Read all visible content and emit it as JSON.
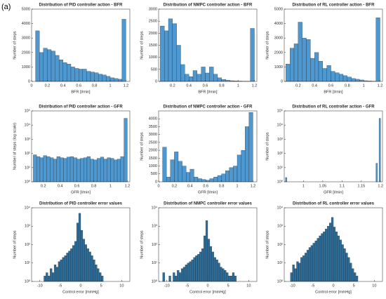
{
  "panel_label": "(a)",
  "chart_data": [
    {
      "type": "histogram",
      "title": "Distribution of PID controller action - BFR",
      "xlabel": "BFR [l/min]",
      "ylabel": "Number of steps",
      "log": false,
      "color": "#4e97cf",
      "bins": [
        0.05,
        0.1,
        0.15,
        0.2,
        0.25,
        0.3,
        0.35,
        0.4,
        0.45,
        0.5,
        0.55,
        0.6,
        0.65,
        0.7,
        0.75,
        0.8,
        0.85,
        0.9,
        0.95,
        1,
        1.05,
        1.1,
        1.15,
        1.2
      ],
      "counts": [
        3500,
        2000,
        2300,
        2200,
        2100,
        1800,
        1500,
        1300,
        1200,
        1000,
        900,
        850,
        850,
        700,
        650,
        600,
        500,
        450,
        350,
        250,
        200,
        150,
        4300
      ],
      "xlim": [
        0,
        1.25
      ],
      "xticks": [
        0,
        0.2,
        0.4,
        0.6,
        0.8,
        1,
        1.2
      ],
      "ylim": [
        0,
        5000
      ],
      "yticks": [
        0,
        1000,
        2000,
        3000,
        4000,
        5000
      ]
    },
    {
      "type": "histogram",
      "title": "Distribution of NMPC controller action - BFR",
      "xlabel": "BFR [l/min]",
      "ylabel": "Number of steps",
      "log": false,
      "color": "#4e97cf",
      "bins": [
        0.05,
        0.1,
        0.15,
        0.2,
        0.25,
        0.3,
        0.35,
        0.4,
        0.45,
        0.5,
        0.55,
        0.6,
        0.65,
        0.7,
        0.75,
        0.8,
        0.85,
        0.9,
        0.95,
        1,
        1.05,
        1.1,
        1.15,
        1.2
      ],
      "counts": [
        2300,
        2100,
        2600,
        2400,
        1500,
        700,
        300,
        200,
        450,
        300,
        600,
        350,
        600,
        300,
        150,
        80,
        50,
        30,
        20,
        15,
        10,
        10,
        2200
      ],
      "xlim": [
        0.03,
        1.23
      ],
      "xticks": [
        0.2,
        0.4,
        0.6,
        0.8,
        1,
        1.2
      ],
      "ylim": [
        0,
        3000
      ],
      "yticks": [
        0,
        500,
        1000,
        1500,
        2000,
        2500,
        3000
      ]
    },
    {
      "type": "histogram",
      "title": "Distribution of RL controller action - BFR",
      "xlabel": "BFR [l/min]",
      "ylabel": "Number of steps",
      "log": false,
      "color": "#4e97cf",
      "bins": [
        0.05,
        0.1,
        0.15,
        0.2,
        0.25,
        0.3,
        0.35,
        0.4,
        0.45,
        0.5,
        0.55,
        0.6,
        0.65,
        0.7,
        0.75,
        0.8,
        0.85,
        0.9,
        0.95,
        1,
        1.05,
        1.1,
        1.15,
        1.2
      ],
      "counts": [
        1200,
        2300,
        2600,
        4100,
        3000,
        2900,
        1600,
        2000,
        1400,
        900,
        1100,
        700,
        600,
        500,
        400,
        300,
        200,
        150,
        100,
        50,
        30,
        20,
        4400
      ],
      "xlim": [
        0.03,
        1.23
      ],
      "xticks": [
        0.2,
        0.4,
        0.6,
        0.8,
        1,
        1.2
      ],
      "ylim": [
        0,
        5000
      ],
      "yticks": [
        0,
        1000,
        2000,
        3000,
        4000,
        5000
      ]
    },
    {
      "type": "histogram",
      "title": "Distribution of PID controller action - GFR",
      "xlabel": "GFR [l/min]",
      "ylabel": "Number of steps (log scale)",
      "log": true,
      "color": "#4e97cf",
      "bins": [
        0.08,
        0.12,
        0.16,
        0.2,
        0.24,
        0.28,
        0.32,
        0.36,
        0.4,
        0.44,
        0.48,
        0.52,
        0.56,
        0.6,
        0.64,
        0.68,
        0.72,
        0.76,
        0.8,
        0.84,
        0.88,
        0.92,
        0.96,
        1,
        1.04,
        1.08,
        1.12,
        1.16,
        1.2
      ],
      "counts": [
        80,
        60,
        50,
        70,
        60,
        50,
        40,
        60,
        50,
        45,
        55,
        60,
        50,
        40,
        45,
        50,
        60,
        40,
        35,
        45,
        55,
        40,
        50,
        45,
        35,
        40,
        60,
        30000
      ],
      "xlim": [
        0.06,
        1.23
      ],
      "xticks": [
        0.2,
        0.4,
        0.6,
        0.8,
        1,
        1.2
      ],
      "ylim": [
        1,
        100000
      ],
      "yticks": [
        {
          "value": 1,
          "label": "10⁰"
        },
        {
          "value": 10,
          "label": "10¹"
        },
        {
          "value": 100,
          "label": "10²"
        },
        {
          "value": 1000,
          "label": "10³"
        },
        {
          "value": 10000,
          "label": "10⁴"
        },
        {
          "value": 100000,
          "label": "10⁵"
        }
      ]
    },
    {
      "type": "histogram",
      "title": "Distribution of NMPC controller action - GFR",
      "xlabel": "GFR [l/min]",
      "ylabel": "Number of steps",
      "log": false,
      "color": "#4e97cf",
      "bins": [
        0.05,
        0.1,
        0.15,
        0.2,
        0.25,
        0.3,
        0.35,
        0.4,
        0.45,
        0.5,
        0.55,
        0.6,
        0.65,
        0.7,
        0.75,
        0.8,
        0.85,
        0.9,
        0.95,
        1,
        1.05,
        1.1,
        1.15,
        1.2
      ],
      "counts": [
        2200,
        300,
        1400,
        1900,
        1300,
        1000,
        600,
        800,
        300,
        200,
        150,
        100,
        200,
        300,
        400,
        500,
        700,
        900,
        1000,
        1700,
        2000,
        3500,
        4400
      ],
      "xlim": [
        0,
        1.25
      ],
      "xticks": [
        0,
        0.2,
        0.4,
        0.6,
        0.8,
        1,
        1.2
      ],
      "ylim": [
        0,
        4500
      ],
      "yticks": [
        0,
        500,
        1000,
        1500,
        2000,
        2500,
        3000,
        3500,
        4000
      ]
    },
    {
      "type": "histogram",
      "title": "Distribution of RL controller action - GFR",
      "xlabel": "GFR [l/min]",
      "ylabel": "Number of steps",
      "log": true,
      "color": "#4e97cf",
      "bins": [
        0.953,
        0.957,
        1.188,
        1.192,
        1.196,
        1.2
      ],
      "counts": [
        2,
        0,
        20,
        0,
        30000
      ],
      "xlim": [
        0.95,
        1.205
      ],
      "xticks": [
        1,
        1.05,
        1.1,
        1.15,
        1.2
      ],
      "ylim": [
        1,
        100000
      ],
      "yticks": [
        {
          "value": 1,
          "label": "10⁰"
        },
        {
          "value": 10,
          "label": "10¹"
        },
        {
          "value": 100,
          "label": "10²"
        },
        {
          "value": 1000,
          "label": "10³"
        },
        {
          "value": 10000,
          "label": "10⁴"
        },
        {
          "value": 100000,
          "label": "10⁵"
        }
      ]
    },
    {
      "type": "histogram",
      "title": "Distribution of PID controller error values",
      "xlabel": "Control error [mmHg]",
      "ylabel": "Number of steps",
      "log": true,
      "color": "#2f6d99",
      "bins": [
        -11,
        -10.5,
        -10,
        -9.5,
        -9,
        -8.5,
        -8,
        -7.5,
        -7,
        -6.5,
        -6,
        -5.5,
        -5,
        -4.5,
        -4,
        -3.5,
        -3,
        -2.5,
        -2,
        -1.5,
        -1,
        -0.5,
        0,
        0.5,
        1,
        1.5,
        2,
        2.5,
        3,
        3.5,
        4,
        4.5,
        5,
        5.5,
        6,
        6.5,
        7,
        7.5,
        8,
        8.5,
        9,
        9.5,
        10
      ],
      "counts": [
        0,
        0,
        0,
        0,
        2,
        3,
        2,
        5,
        3,
        8,
        6,
        12,
        15,
        20,
        25,
        35,
        45,
        60,
        90,
        150,
        1500,
        5000,
        600,
        200,
        100,
        60,
        40,
        25,
        15,
        8,
        5,
        3,
        2,
        0,
        0,
        0,
        0,
        0,
        0,
        0,
        0,
        0
      ],
      "xlim": [
        -12,
        12
      ],
      "xticks": [
        -10,
        -5,
        0,
        5,
        10
      ],
      "ylim": [
        1,
        10000
      ],
      "yticks": [
        {
          "value": 1,
          "label": "10⁰"
        },
        {
          "value": 10,
          "label": "10¹"
        },
        {
          "value": 100,
          "label": "10²"
        },
        {
          "value": 1000,
          "label": "10³"
        },
        {
          "value": 10000,
          "label": "10⁴"
        }
      ]
    },
    {
      "type": "histogram",
      "title": "Distribution of NMPC controller error values",
      "xlabel": "Control error [mmHg]",
      "ylabel": "Number of steps",
      "log": true,
      "color": "#2f6d99",
      "bins": [
        -11,
        -10.5,
        -10,
        -9.5,
        -9,
        -8.5,
        -8,
        -7.5,
        -7,
        -6.5,
        -6,
        -5.5,
        -5,
        -4.5,
        -4,
        -3.5,
        -3,
        -2.5,
        -2,
        -1.5,
        -1,
        -0.5,
        0,
        0.5,
        1,
        1.5,
        2,
        2.5,
        3,
        3.5,
        4,
        4.5,
        5,
        5.5,
        6,
        6.5,
        7,
        7.5,
        8,
        8.5,
        9,
        9.5,
        10
      ],
      "counts": [
        3,
        0,
        0,
        2,
        0,
        3,
        2,
        4,
        3,
        5,
        6,
        8,
        10,
        12,
        15,
        20,
        25,
        30,
        40,
        60,
        300,
        2000,
        200,
        80,
        40,
        20,
        15,
        10,
        6,
        5,
        4,
        3,
        2,
        2,
        3,
        2,
        0,
        0,
        0,
        0,
        0,
        0
      ],
      "xlim": [
        -12,
        12
      ],
      "xticks": [
        -10,
        -5,
        0,
        5,
        10
      ],
      "ylim": [
        1,
        10000
      ],
      "yticks": [
        {
          "value": 1,
          "label": "10⁰"
        },
        {
          "value": 10,
          "label": "10¹"
        },
        {
          "value": 100,
          "label": "10²"
        },
        {
          "value": 1000,
          "label": "10³"
        },
        {
          "value": 10000,
          "label": "10⁴"
        }
      ]
    },
    {
      "type": "histogram",
      "title": "Distribution of RL controller error values",
      "xlabel": "Control error [mmHg]",
      "ylabel": "Number of steps",
      "log": true,
      "color": "#2f6d99",
      "bins": [
        -11,
        -10.5,
        -10,
        -9.5,
        -9,
        -8.5,
        -8,
        -7.5,
        -7,
        -6.5,
        -6,
        -5.5,
        -5,
        -4.5,
        -4,
        -3.5,
        -3,
        -2.5,
        -2,
        -1.5,
        -1,
        -0.5,
        0,
        0.5,
        1,
        1.5,
        2,
        2.5,
        3,
        3.5,
        4,
        4.5,
        5,
        5.5,
        6,
        6.5,
        7,
        7.5,
        8,
        8.5,
        9,
        9.5,
        10
      ],
      "counts": [
        0,
        3,
        8,
        5,
        12,
        10,
        20,
        25,
        35,
        50,
        70,
        90,
        120,
        160,
        220,
        300,
        400,
        500,
        700,
        1000,
        1500,
        3000,
        900,
        500,
        300,
        180,
        100,
        60,
        35,
        20,
        10,
        5,
        3,
        2,
        0,
        0,
        0,
        0,
        0,
        0,
        0,
        0
      ],
      "xlim": [
        -12,
        12
      ],
      "xticks": [
        -10,
        -5,
        0,
        5,
        10
      ],
      "ylim": [
        1,
        10000
      ],
      "yticks": [
        {
          "value": 1,
          "label": "10⁰"
        },
        {
          "value": 10,
          "label": "10¹"
        },
        {
          "value": 100,
          "label": "10²"
        },
        {
          "value": 1000,
          "label": "10³"
        },
        {
          "value": 10000,
          "label": "10⁴"
        }
      ]
    }
  ]
}
